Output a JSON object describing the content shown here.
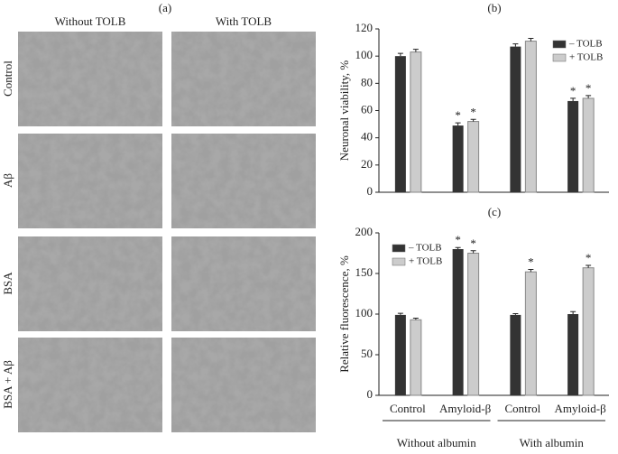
{
  "panel_a": {
    "label": "(a)",
    "columns": [
      "Without TOLB",
      "With TOLB"
    ],
    "rows": [
      "Control",
      "Aβ",
      "BSA",
      "BSA + Aβ"
    ]
  },
  "chart_data": [
    {
      "type": "bar",
      "title": "(b)",
      "y_label": "Neuronal viability, %",
      "categories": [
        null,
        null,
        null,
        null
      ],
      "series": [
        {
          "name": "– TOLB",
          "color": "#333333",
          "values": [
            100,
            49,
            107,
            67
          ],
          "errors": [
            2,
            2,
            2,
            2
          ],
          "stars": [
            null,
            "*",
            null,
            "*"
          ]
        },
        {
          "name": "+ TOLB",
          "color": "#cccccc",
          "values": [
            103,
            52,
            111,
            69
          ],
          "errors": [
            2,
            1.5,
            2,
            2
          ],
          "stars": [
            null,
            "*",
            null,
            "*"
          ]
        }
      ],
      "ylim": [
        0,
        120
      ],
      "yticks": [
        0,
        20,
        40,
        60,
        80,
        100,
        120
      ],
      "legend": "upper right"
    },
    {
      "type": "bar",
      "title": "(c)",
      "y_label": "Relative fluorescence, %",
      "categories": [
        "Control",
        "Amyloid-β",
        "Control",
        "Amyloid-β"
      ],
      "group_labels": [
        "Without albumin",
        "With albumin"
      ],
      "series": [
        {
          "name": "– TOLB",
          "color": "#333333",
          "values": [
            99,
            180,
            99,
            100
          ],
          "errors": [
            2,
            2,
            1.5,
            3
          ],
          "stars": [
            null,
            "*",
            null,
            null
          ]
        },
        {
          "name": "+ TOLB",
          "color": "#cccccc",
          "values": [
            93,
            175,
            152,
            157
          ],
          "errors": [
            2,
            3,
            3,
            3
          ],
          "stars": [
            null,
            "*",
            "*",
            "*"
          ]
        }
      ],
      "ylim": [
        0,
        200
      ],
      "yticks": [
        0,
        50,
        100,
        150,
        200
      ],
      "legend": "upper left"
    }
  ]
}
